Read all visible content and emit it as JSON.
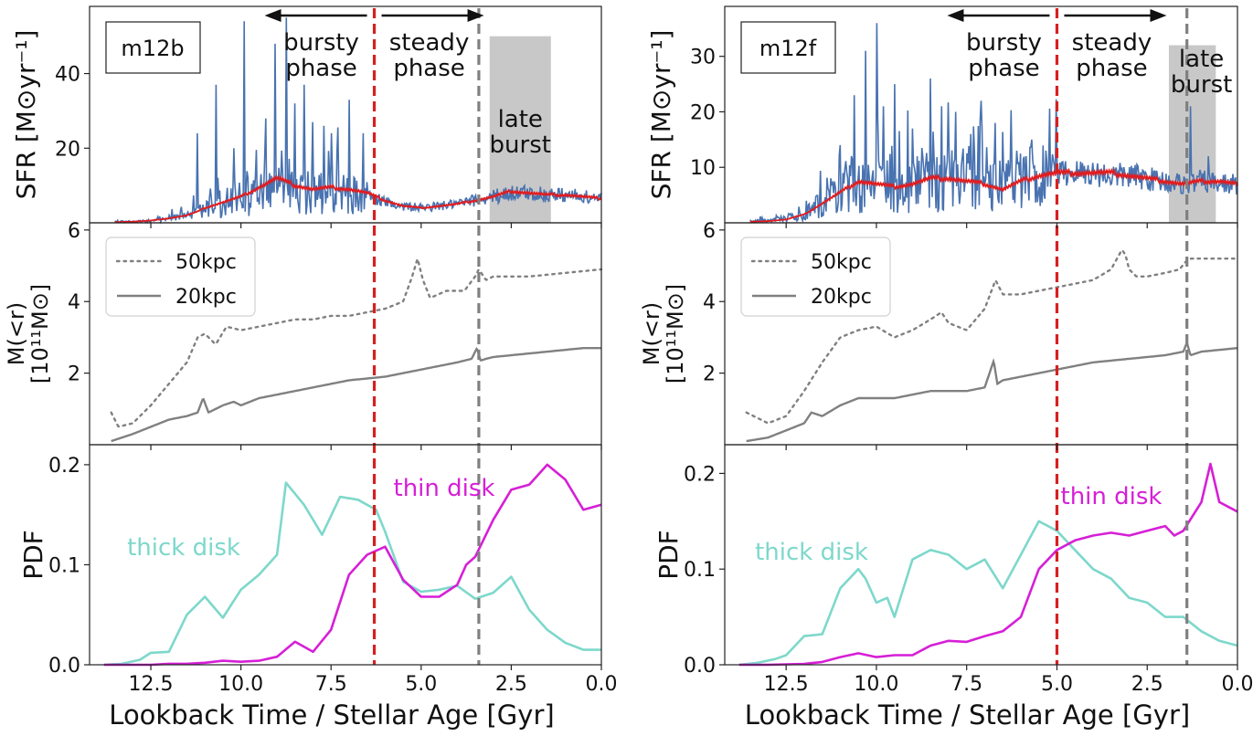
{
  "figure": {
    "xlabel": "Lookback Time / Stellar Age [Gyr]",
    "xlim": [
      14.2,
      0.0
    ],
    "xticks": [
      12.5,
      10.0,
      7.5,
      5.0,
      2.5,
      0.0
    ],
    "xtick_labels": [
      "12.5",
      "10.0",
      "7.5",
      "5.0",
      "2.5",
      "0.0"
    ],
    "rows": {
      "sfr": {
        "ylabel": "SFR [M⊙yr⁻¹]"
      },
      "mass": {
        "ylabel_line1": "M(<r)",
        "ylabel_line2": "[10¹¹M⊙]"
      },
      "pdf": {
        "ylabel": "PDF"
      }
    },
    "arrows": {
      "bursty": "bursty",
      "bursty2": "phase",
      "steady": "steady",
      "steady2": "phase"
    },
    "late_burst": {
      "line1": "late",
      "line2": "burst"
    },
    "legend": {
      "dotted": "50kpc",
      "solid": "20kpc"
    },
    "labels": {
      "thick": "thick disk",
      "thin": "thin disk"
    }
  },
  "colors": {
    "sfr_line": "#4872b0",
    "sfr_avg": "#e41a1c",
    "mass_line": "#808080",
    "thick": "#7dd8cb",
    "thin": "#d61fd6",
    "vline_red": "#d62020",
    "vline_gray": "#808080",
    "shade": "#c8c8c8"
  },
  "chart_data": [
    {
      "id": "m12b",
      "type": "line",
      "name": "m12b",
      "t_transition": 6.3,
      "t_late": 3.4,
      "late_burst_range": [
        3.1,
        1.4
      ],
      "sfr": {
        "ylim": [
          0,
          58
        ],
        "yticks": [
          20,
          40
        ],
        "shade_top": 50,
        "avg": {
          "t": [
            13.5,
            13.0,
            12.5,
            12.0,
            11.5,
            11.2,
            11.0,
            10.5,
            10.0,
            9.5,
            9.0,
            8.5,
            8.0,
            7.5,
            7.0,
            6.5,
            6.0,
            5.5,
            5.0,
            4.5,
            4.0,
            3.5,
            3.0,
            2.5,
            2.0,
            1.5,
            1.0,
            0.5,
            0.0
          ],
          "v": [
            0.2,
            0.3,
            0.6,
            1.2,
            2.0,
            3.0,
            4.0,
            5.5,
            7.0,
            9.5,
            12.0,
            10.0,
            9.0,
            9.5,
            9.0,
            8.0,
            6.0,
            4.5,
            4.0,
            4.5,
            5.0,
            6.0,
            7.0,
            8.5,
            8.0,
            7.5,
            7.5,
            7.0,
            6.5
          ]
        },
        "base": {
          "t": [
            13.5,
            12.5,
            12.0,
            11.5,
            11.0,
            10.5,
            10.0,
            9.5,
            9.0,
            8.5,
            8.0,
            7.5,
            7.0,
            6.5,
            6.0,
            5.5,
            5.0,
            4.5,
            4.0,
            3.5,
            3.0,
            2.5,
            2.0,
            1.5,
            1.0,
            0.5,
            0.0
          ],
          "v": [
            0.2,
            0.5,
            1.0,
            2.0,
            3.5,
            5.0,
            6.5,
            8.0,
            8.5,
            8.0,
            8.0,
            8.5,
            8.0,
            7.5,
            5.5,
            4.5,
            4.0,
            4.5,
            5.0,
            6.0,
            7.0,
            8.0,
            8.0,
            7.5,
            7.5,
            7.0,
            6.5
          ]
        },
        "spikes": [
          [
            11.2,
            24
          ],
          [
            10.7,
            37
          ],
          [
            10.2,
            20
          ],
          [
            9.9,
            54
          ],
          [
            9.3,
            28
          ],
          [
            9.05,
            48
          ],
          [
            8.75,
            55
          ],
          [
            8.5,
            32
          ],
          [
            8.25,
            37
          ],
          [
            8.0,
            27
          ],
          [
            7.7,
            26
          ],
          [
            7.5,
            24
          ],
          [
            7.0,
            33
          ],
          [
            6.6,
            24
          ]
        ]
      },
      "mass": {
        "ylim": [
          0,
          6.2
        ],
        "yticks": [
          2,
          4,
          6
        ],
        "m50": {
          "t": [
            13.6,
            13.4,
            13.0,
            12.5,
            12.0,
            11.5,
            11.2,
            11.0,
            10.7,
            10.4,
            10.0,
            9.5,
            9.0,
            8.5,
            8.0,
            7.5,
            7.0,
            6.5,
            6.0,
            5.5,
            5.25,
            5.1,
            4.95,
            4.75,
            4.3,
            3.8,
            3.5,
            3.4,
            3.2,
            3.0,
            2.5,
            2.0,
            1.5,
            1.0,
            0.5,
            0.0
          ],
          "v": [
            0.9,
            0.5,
            0.6,
            1.1,
            1.7,
            2.3,
            3.0,
            3.1,
            2.8,
            3.3,
            3.2,
            3.3,
            3.4,
            3.5,
            3.5,
            3.6,
            3.6,
            3.7,
            3.8,
            4.0,
            4.7,
            5.2,
            4.6,
            4.1,
            4.3,
            4.3,
            4.7,
            4.9,
            4.6,
            4.7,
            4.7,
            4.7,
            4.75,
            4.8,
            4.85,
            4.9
          ]
        },
        "m20": {
          "t": [
            13.6,
            13.0,
            12.5,
            12.0,
            11.5,
            11.2,
            11.05,
            10.9,
            10.5,
            10.2,
            10.0,
            9.5,
            9.0,
            8.5,
            8.0,
            7.5,
            7.0,
            6.5,
            6.0,
            5.5,
            5.0,
            4.5,
            4.0,
            3.6,
            3.45,
            3.35,
            3.2,
            3.0,
            2.5,
            2.0,
            1.5,
            1.0,
            0.5,
            0.0
          ],
          "v": [
            0.1,
            0.3,
            0.5,
            0.7,
            0.8,
            0.9,
            1.3,
            0.9,
            1.1,
            1.2,
            1.1,
            1.3,
            1.4,
            1.5,
            1.6,
            1.7,
            1.8,
            1.85,
            1.9,
            2.0,
            2.1,
            2.2,
            2.3,
            2.4,
            2.7,
            2.35,
            2.4,
            2.45,
            2.5,
            2.55,
            2.6,
            2.65,
            2.7,
            2.7
          ]
        }
      },
      "pdf": {
        "ylim": [
          0,
          0.22
        ],
        "yticks": [
          0.0,
          0.1,
          0.2
        ],
        "ytick_labels": [
          "0.0",
          "0.1",
          "0.2"
        ],
        "thick": {
          "t": [
            13.8,
            13.3,
            12.8,
            12.5,
            12.0,
            11.5,
            11.0,
            10.5,
            10.0,
            9.5,
            9.0,
            8.75,
            8.25,
            7.75,
            7.25,
            6.75,
            6.25,
            6.0,
            5.5,
            5.0,
            4.5,
            4.0,
            3.5,
            3.0,
            2.5,
            2.0,
            1.5,
            1.0,
            0.5,
            0.0
          ],
          "v": [
            0.0,
            0.001,
            0.005,
            0.012,
            0.013,
            0.05,
            0.068,
            0.047,
            0.075,
            0.09,
            0.11,
            0.182,
            0.16,
            0.13,
            0.168,
            0.165,
            0.155,
            0.133,
            0.083,
            0.073,
            0.075,
            0.079,
            0.066,
            0.072,
            0.088,
            0.055,
            0.035,
            0.022,
            0.015,
            0.015
          ]
        },
        "thin": {
          "t": [
            13.8,
            13.0,
            12.5,
            12.0,
            11.5,
            11.0,
            10.5,
            10.0,
            9.5,
            9.0,
            8.5,
            8.0,
            7.5,
            7.0,
            6.5,
            6.0,
            5.5,
            5.0,
            4.5,
            4.0,
            3.75,
            3.5,
            3.0,
            2.5,
            2.0,
            1.5,
            1.0,
            0.5,
            0.0
          ],
          "v": [
            0.0,
            0.0,
            0.0,
            0.001,
            0.001,
            0.002,
            0.004,
            0.003,
            0.004,
            0.008,
            0.023,
            0.013,
            0.035,
            0.09,
            0.11,
            0.118,
            0.085,
            0.068,
            0.068,
            0.08,
            0.1,
            0.108,
            0.145,
            0.175,
            0.18,
            0.2,
            0.185,
            0.155,
            0.16
          ]
        }
      }
    },
    {
      "id": "m12f",
      "type": "line",
      "name": "m12f",
      "t_transition": 5.0,
      "t_late": 1.4,
      "late_burst_range": [
        1.9,
        0.6
      ],
      "sfr": {
        "ylim": [
          0,
          39
        ],
        "yticks": [
          10,
          20,
          30
        ],
        "shade_top": 32,
        "avg": {
          "t": [
            13.5,
            13.0,
            12.5,
            12.0,
            11.5,
            11.0,
            10.5,
            10.0,
            9.5,
            9.0,
            8.5,
            8.0,
            7.5,
            7.0,
            6.5,
            6.0,
            5.5,
            5.0,
            4.5,
            4.0,
            3.5,
            3.0,
            2.5,
            2.0,
            1.5,
            1.0,
            0.5,
            0.0
          ],
          "v": [
            0.2,
            0.3,
            0.6,
            1.5,
            3.5,
            5.5,
            7.5,
            7.0,
            6.5,
            7.0,
            8.0,
            8.0,
            7.5,
            7.0,
            6.0,
            7.5,
            8.5,
            9.0,
            9.0,
            9.0,
            9.0,
            8.5,
            8.0,
            7.5,
            7.0,
            7.5,
            7.5,
            7.0
          ]
        },
        "base": {
          "t": [
            13.5,
            12.5,
            12.0,
            11.5,
            11.0,
            10.5,
            10.0,
            9.5,
            9.0,
            8.5,
            8.0,
            7.5,
            7.0,
            6.5,
            6.0,
            5.5,
            5.0,
            4.5,
            4.0,
            3.5,
            3.0,
            2.5,
            2.0,
            1.5,
            1.0,
            0.5,
            0.0
          ],
          "v": [
            0.2,
            0.8,
            1.5,
            3.5,
            5.5,
            7.0,
            6.5,
            6.5,
            7.0,
            7.5,
            7.5,
            7.5,
            7.0,
            6.5,
            7.5,
            8.5,
            9.0,
            9.0,
            9.0,
            8.5,
            8.5,
            8.0,
            7.5,
            7.0,
            7.5,
            7.0,
            7.0
          ]
        },
        "spikes": [
          [
            11.0,
            14
          ],
          [
            10.6,
            23
          ],
          [
            10.3,
            31
          ],
          [
            10.0,
            36
          ],
          [
            9.8,
            21
          ],
          [
            9.5,
            25
          ],
          [
            9.0,
            17
          ],
          [
            8.5,
            26
          ],
          [
            8.2,
            21
          ],
          [
            7.8,
            20
          ],
          [
            7.4,
            16
          ],
          [
            7.1,
            22
          ],
          [
            6.7,
            18
          ],
          [
            6.1,
            13
          ],
          [
            5.7,
            15
          ],
          [
            5.3,
            13
          ],
          [
            1.3,
            21
          ],
          [
            0.8,
            12
          ]
        ]
      },
      "mass": {
        "ylim": [
          0,
          6.2
        ],
        "yticks": [
          2,
          4,
          6
        ],
        "m50": {
          "t": [
            13.6,
            13.0,
            12.5,
            12.0,
            11.5,
            11.0,
            10.5,
            10.0,
            9.5,
            9.0,
            8.5,
            8.2,
            8.0,
            7.5,
            7.0,
            6.7,
            6.5,
            6.2,
            6.0,
            5.5,
            5.0,
            4.5,
            4.0,
            3.5,
            3.2,
            3.1,
            3.0,
            2.8,
            2.5,
            2.0,
            1.6,
            1.45,
            1.3,
            1.0,
            0.5,
            0.0
          ],
          "v": [
            0.9,
            0.6,
            0.8,
            1.5,
            2.3,
            3.0,
            3.2,
            3.3,
            3.0,
            3.2,
            3.5,
            3.7,
            3.4,
            3.2,
            3.8,
            4.6,
            4.2,
            4.2,
            4.2,
            4.3,
            4.4,
            4.5,
            4.6,
            4.9,
            5.45,
            5.3,
            4.9,
            4.7,
            4.7,
            4.8,
            4.9,
            5.1,
            5.2,
            5.2,
            5.2,
            5.2
          ]
        },
        "m20": {
          "t": [
            13.6,
            13.0,
            12.5,
            12.0,
            11.8,
            11.5,
            11.0,
            10.5,
            10.0,
            9.5,
            9.0,
            8.5,
            8.0,
            7.5,
            7.0,
            6.75,
            6.65,
            6.5,
            6.0,
            5.5,
            5.0,
            4.5,
            4.0,
            3.5,
            3.0,
            2.5,
            2.0,
            1.5,
            1.4,
            1.3,
            1.0,
            0.5,
            0.0
          ],
          "v": [
            0.1,
            0.2,
            0.4,
            0.6,
            0.9,
            0.8,
            1.1,
            1.3,
            1.3,
            1.3,
            1.4,
            1.5,
            1.5,
            1.5,
            1.6,
            2.35,
            1.7,
            1.8,
            1.9,
            2.0,
            2.1,
            2.2,
            2.3,
            2.35,
            2.4,
            2.45,
            2.5,
            2.6,
            2.85,
            2.5,
            2.6,
            2.65,
            2.7
          ]
        }
      },
      "pdf": {
        "ylim": [
          0,
          0.23
        ],
        "yticks": [
          0.0,
          0.1,
          0.2
        ],
        "ytick_labels": [
          "0.0",
          "0.1",
          "0.2"
        ],
        "thick": {
          "t": [
            13.8,
            13.3,
            12.8,
            12.5,
            12.0,
            11.5,
            11.0,
            10.5,
            10.3,
            10.0,
            9.7,
            9.5,
            9.0,
            8.5,
            8.0,
            7.5,
            7.0,
            6.5,
            6.0,
            5.5,
            5.0,
            4.5,
            4.0,
            3.5,
            3.0,
            2.5,
            2.0,
            1.5,
            1.0,
            0.5,
            0.0
          ],
          "v": [
            0.0,
            0.002,
            0.006,
            0.01,
            0.03,
            0.032,
            0.08,
            0.1,
            0.09,
            0.065,
            0.07,
            0.05,
            0.11,
            0.12,
            0.115,
            0.1,
            0.11,
            0.08,
            0.115,
            0.15,
            0.14,
            0.12,
            0.1,
            0.09,
            0.07,
            0.065,
            0.05,
            0.05,
            0.035,
            0.025,
            0.02
          ]
        },
        "thin": {
          "t": [
            13.8,
            13.0,
            12.0,
            11.5,
            11.0,
            10.5,
            10.0,
            9.5,
            9.0,
            8.5,
            8.0,
            7.5,
            7.0,
            6.5,
            6.0,
            5.5,
            5.0,
            4.5,
            4.0,
            3.5,
            3.0,
            2.5,
            2.0,
            1.75,
            1.5,
            1.0,
            0.75,
            0.5,
            0.0
          ],
          "v": [
            0.0,
            0.0,
            0.001,
            0.003,
            0.008,
            0.012,
            0.008,
            0.01,
            0.01,
            0.02,
            0.025,
            0.024,
            0.03,
            0.035,
            0.05,
            0.1,
            0.12,
            0.13,
            0.135,
            0.138,
            0.135,
            0.14,
            0.145,
            0.135,
            0.14,
            0.17,
            0.21,
            0.17,
            0.16
          ]
        }
      }
    }
  ]
}
